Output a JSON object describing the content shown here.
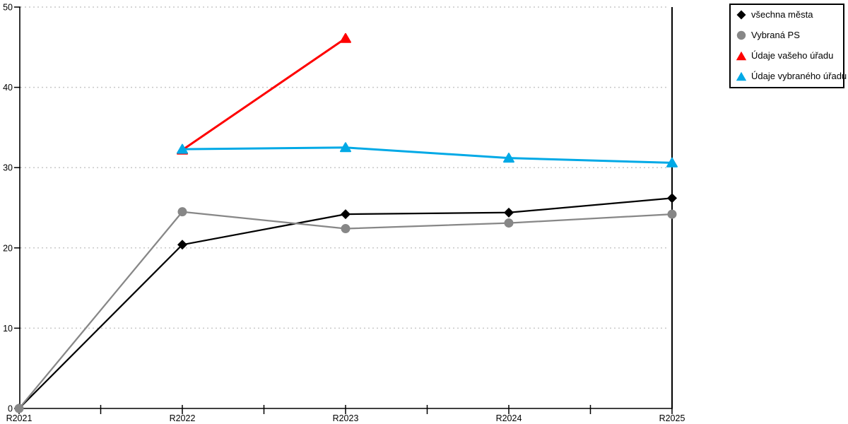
{
  "page": {
    "background": "#ffffff"
  },
  "chart_data": {
    "type": "line",
    "title": "",
    "xlabel": "",
    "ylabel": "",
    "categories": [
      "R2021",
      "R2022",
      "R2023",
      "R2024",
      "R2025"
    ],
    "ylim": [
      0,
      50
    ],
    "ytick_step": 10,
    "y_tick_labels": [
      "0",
      "10",
      "20",
      "30",
      "40",
      "50"
    ],
    "grid": "horizontal-dotted",
    "legend_position": "top-right",
    "series": [
      {
        "name": "všechna města",
        "marker": "diamond",
        "color": "#000000",
        "line_width": 2.25,
        "values": [
          0,
          20.4,
          24.2,
          24.4,
          26.2
        ]
      },
      {
        "name": "Vybraná PS",
        "marker": "circle",
        "color": "#878787",
        "line_width": 2.25,
        "values": [
          0,
          24.5,
          22.4,
          23.1,
          24.2
        ]
      },
      {
        "name": "Údaje vašeho úřadu",
        "marker": "triangle",
        "color": "#fe0000",
        "line_width": 3,
        "values": [
          null,
          32.2,
          46.1,
          null,
          null
        ]
      },
      {
        "name": "Údaje vybraného úřadu",
        "marker": "triangle",
        "color": "#00a9e6",
        "line_width": 3,
        "values": [
          null,
          32.3,
          32.5,
          31.2,
          30.6
        ]
      }
    ],
    "colors": {
      "gridline": "#c8c8c8",
      "axis": "#000000",
      "text": "#000000",
      "legend_border": "#000000",
      "background": "#ffffff"
    }
  }
}
